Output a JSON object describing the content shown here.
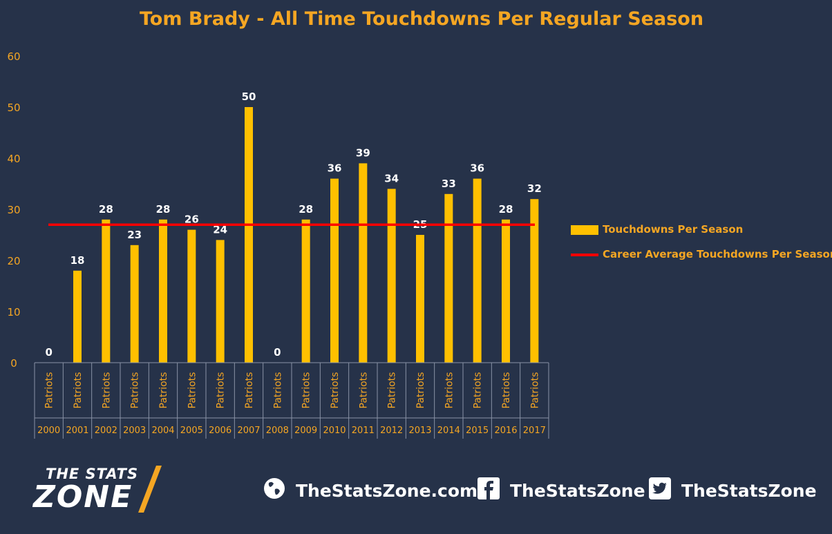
{
  "chart_data": {
    "type": "bar",
    "title": "Tom Brady - All Time Touchdowns Per Regular Season",
    "categories": [
      "2000",
      "2001",
      "2002",
      "2003",
      "2004",
      "2005",
      "2006",
      "2007",
      "2008",
      "2009",
      "2010",
      "2011",
      "2012",
      "2013",
      "2014",
      "2015",
      "2016",
      "2017"
    ],
    "team_labels": [
      "Patriots",
      "Patriots",
      "Patriots",
      "Patriots",
      "Patriots",
      "Patriots",
      "Patriots",
      "Patriots",
      "Patriots",
      "Patriots",
      "Patriots",
      "Patriots",
      "Patriots",
      "Patriots",
      "Patriots",
      "Patriots",
      "Patriots",
      "Patriots"
    ],
    "series": [
      {
        "name": "Touchdowns Per Season",
        "type": "bar",
        "color": "#ffc000",
        "values": [
          0,
          18,
          28,
          23,
          28,
          26,
          24,
          50,
          0,
          28,
          36,
          39,
          34,
          25,
          33,
          36,
          28,
          32
        ]
      },
      {
        "name": "Career Average Touchdowns Per Season",
        "type": "line",
        "color": "#ff0000",
        "values": [
          27,
          27,
          27,
          27,
          27,
          27,
          27,
          27,
          27,
          27,
          27,
          27,
          27,
          27,
          27,
          27,
          27,
          27
        ]
      }
    ],
    "ylim": [
      0,
      60
    ],
    "yticks": [
      "0",
      "10",
      "20",
      "30",
      "40",
      "50",
      "60"
    ],
    "legend_position": "right",
    "grid": false,
    "label_color": "#f5a623"
  },
  "footer": {
    "brand_line1": "THE STATS",
    "brand_line2": "ZONE",
    "website": "TheStatsZone.com",
    "facebook": "TheStatsZone",
    "twitter": "TheStatsZone",
    "icons": [
      "globe-icon",
      "facebook-icon",
      "twitter-icon"
    ]
  }
}
